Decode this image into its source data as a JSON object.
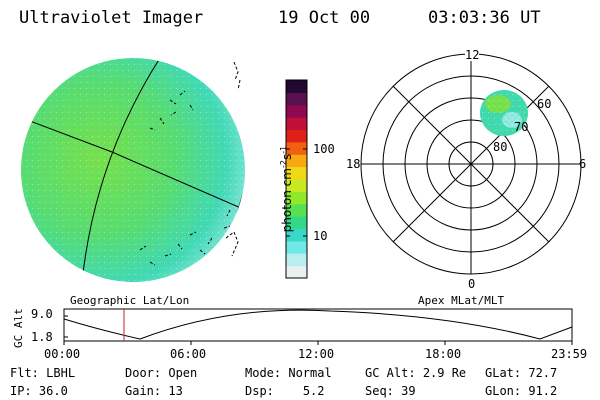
{
  "header": {
    "instrument": "Ultraviolet Imager",
    "date": "19 Oct 00",
    "time": "03:03:36 UT"
  },
  "left_panel": {
    "caption": "Geographic Lat/Lon"
  },
  "colorbar": {
    "unit_label": "photon cm",
    "unit_exp1": "-2",
    "unit_mid": "s",
    "unit_exp2": "-1",
    "ticks": [
      "100",
      "10"
    ],
    "colors": [
      "#e8f0f0",
      "#b8eef0",
      "#70e8e8",
      "#38d8c8",
      "#30d888",
      "#58e050",
      "#90e828",
      "#c8e820",
      "#f0d818",
      "#f8a810",
      "#f06010",
      "#e02018",
      "#c01038",
      "#900850",
      "#581050",
      "#200830"
    ]
  },
  "polar_plot": {
    "caption": "Apex MLat/MLT",
    "mlt_labels": {
      "top": "12",
      "bottom": "0",
      "left": "18",
      "right": "6"
    },
    "lat_labels": [
      "60",
      "70",
      "80"
    ]
  },
  "orbit": {
    "axis_label": "GC Alt",
    "y_ticks": [
      "9.0",
      "1.8"
    ],
    "x_ticks": [
      "00:00",
      "06:00",
      "12:00",
      "18:00",
      "23:59"
    ],
    "current_time_color": "#cc2020"
  },
  "status": {
    "row1": [
      {
        "key": "Flt:",
        "val": "LBHL"
      },
      {
        "key": "Door:",
        "val": "Open"
      },
      {
        "key": "Mode:",
        "val": "Normal"
      },
      {
        "key": "GC Alt:",
        "val": "2.9 Re"
      },
      {
        "key": "GLat:",
        "val": "72.7"
      }
    ],
    "row2": [
      {
        "key": "IP:",
        "val": "36.0"
      },
      {
        "key": "Gain:",
        "val": "13"
      },
      {
        "key": "Dsp:",
        "val": "5.2"
      },
      {
        "key": "Seq:",
        "val": "39"
      },
      {
        "key": "GLon:",
        "val": "91.2"
      }
    ]
  }
}
